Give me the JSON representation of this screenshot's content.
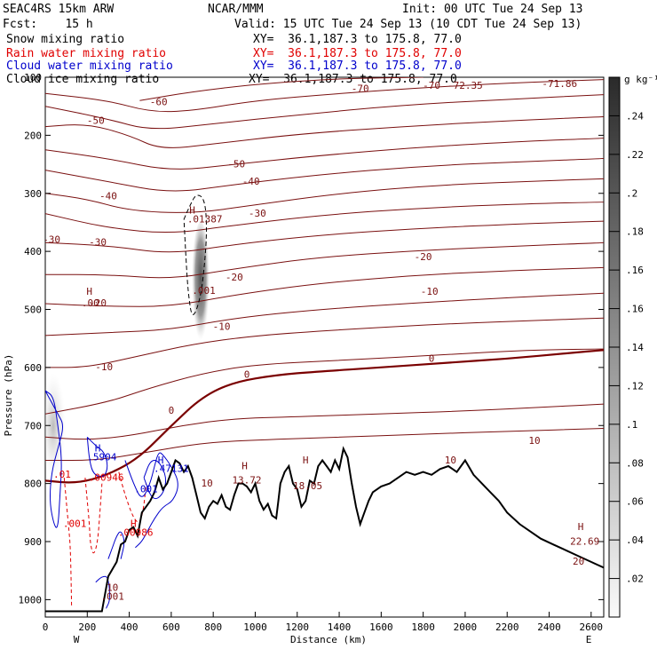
{
  "chart_data": {
    "type": "cross-section",
    "header": {
      "model": "SEAC4RS 15km ARW",
      "center": "NCAR/MMM",
      "init": "Init: 00 UTC Tue 24 Sep 13",
      "fcst": "Fcst:    15 h",
      "valid": "Valid: 15 UTC Tue 24 Sep 13 (10 CDT Tue 24 Sep 13)"
    },
    "fields": [
      {
        "name": "Snow mixing ratio",
        "color": "#000000",
        "xy": "XY=  36.1,187.3 to 175.8, 77.0"
      },
      {
        "name": "Rain water mixing ratio",
        "color": "#e00000",
        "xy": "XY=  36.1,187.3 to 175.8, 77.0"
      },
      {
        "name": "Cloud water mixing ratio",
        "color": "#0000cc",
        "xy": "XY=  36.1,187.3 to 175.8, 77.0"
      },
      {
        "name": "Cloud ice mixing ratio",
        "color": "#000000",
        "xy": "XY=  36.1,187.3 to 175.8, 77.0"
      }
    ],
    "xlabel": "Distance (km)",
    "ylabel": "Pressure (hPa)",
    "xlim": [
      0,
      2660
    ],
    "ylim": [
      100,
      1030
    ],
    "x_ticks": [
      0,
      200,
      400,
      600,
      800,
      1000,
      1200,
      1400,
      1600,
      1800,
      2000,
      2200,
      2400,
      2600
    ],
    "y_ticks": [
      100,
      200,
      300,
      400,
      500,
      600,
      700,
      800,
      900,
      1000
    ],
    "endpoints": {
      "left": "W",
      "right": "E"
    },
    "colorbar": {
      "unit": "g kg⁻¹",
      "labels": [
        ".24",
        ".22",
        ".2",
        ".18",
        ".16",
        ".16",
        ".14",
        ".12",
        ".1",
        ".08",
        ".06",
        ".04",
        ".02"
      ]
    },
    "temperature_contours": [
      {
        "label": "-70",
        "pts": [
          [
            450,
            140
          ],
          [
            700,
            125
          ],
          [
            1000,
            112
          ],
          [
            1400,
            102
          ],
          [
            1800,
            100
          ]
        ]
      },
      {
        "label": "-60",
        "pts": [
          [
            0,
            128
          ],
          [
            300,
            140
          ],
          [
            500,
            160
          ],
          [
            700,
            158
          ],
          [
            1000,
            140
          ],
          [
            1400,
            128
          ],
          [
            1800,
            118
          ],
          [
            2200,
            110
          ],
          [
            2660,
            104
          ]
        ]
      },
      {
        "label": "-60",
        "pts": [
          [
            0,
            150
          ],
          [
            300,
            172
          ],
          [
            500,
            192
          ],
          [
            800,
            180
          ],
          [
            1200,
            165
          ],
          [
            1700,
            148
          ],
          [
            2200,
            138
          ],
          [
            2660,
            130
          ]
        ]
      },
      {
        "label": "-50",
        "pts": [
          [
            0,
            185
          ],
          [
            200,
            180
          ],
          [
            400,
            200
          ],
          [
            550,
            225
          ],
          [
            800,
            215
          ],
          [
            1200,
            198
          ],
          [
            1700,
            185
          ],
          [
            2200,
            175
          ],
          [
            2660,
            168
          ]
        ]
      },
      {
        "label": "-50",
        "pts": [
          [
            0,
            225
          ],
          [
            300,
            240
          ],
          [
            600,
            262
          ],
          [
            900,
            250
          ],
          [
            1300,
            235
          ],
          [
            1800,
            220
          ],
          [
            2300,
            210
          ],
          [
            2660,
            205
          ]
        ]
      },
      {
        "label": "-40",
        "pts": [
          [
            0,
            260
          ],
          [
            300,
            280
          ],
          [
            600,
            300
          ],
          [
            900,
            285
          ],
          [
            1300,
            268
          ],
          [
            1800,
            253
          ],
          [
            2300,
            245
          ],
          [
            2660,
            240
          ]
        ]
      },
      {
        "label": "-40",
        "pts": [
          [
            0,
            300
          ],
          [
            200,
            310
          ],
          [
            400,
            330
          ],
          [
            700,
            335
          ],
          [
            1000,
            320
          ],
          [
            1400,
            300
          ],
          [
            1900,
            285
          ],
          [
            2400,
            278
          ],
          [
            2660,
            275
          ]
        ]
      },
      {
        "label": "-30",
        "pts": [
          [
            0,
            335
          ],
          [
            300,
            360
          ],
          [
            600,
            370
          ],
          [
            900,
            355
          ],
          [
            1300,
            338
          ],
          [
            1800,
            325
          ],
          [
            2300,
            318
          ],
          [
            2660,
            315
          ]
        ]
      },
      {
        "label": "-30",
        "pts": [
          [
            0,
            385
          ],
          [
            300,
            390
          ],
          [
            600,
            405
          ],
          [
            900,
            388
          ],
          [
            1300,
            372
          ],
          [
            1800,
            360
          ],
          [
            2300,
            352
          ],
          [
            2660,
            348
          ]
        ]
      },
      {
        "label": "-20",
        "pts": [
          [
            0,
            440
          ],
          [
            300,
            440
          ],
          [
            600,
            448
          ],
          [
            900,
            430
          ],
          [
            1300,
            410
          ],
          [
            1800,
            398
          ],
          [
            2300,
            390
          ],
          [
            2660,
            385
          ]
        ]
      },
      {
        "label": "-20",
        "pts": [
          [
            0,
            490
          ],
          [
            300,
            495
          ],
          [
            600,
            495
          ],
          [
            900,
            475
          ],
          [
            1300,
            455
          ],
          [
            1800,
            440
          ],
          [
            2300,
            432
          ],
          [
            2660,
            428
          ]
        ]
      },
      {
        "label": "-10",
        "pts": [
          [
            0,
            545
          ],
          [
            300,
            540
          ],
          [
            600,
            535
          ],
          [
            900,
            515
          ],
          [
            1300,
            500
          ],
          [
            1800,
            488
          ],
          [
            2300,
            478
          ],
          [
            2660,
            472
          ]
        ]
      },
      {
        "label": "-10",
        "pts": [
          [
            0,
            600
          ],
          [
            200,
            600
          ],
          [
            450,
            580
          ],
          [
            700,
            560
          ],
          [
            1000,
            545
          ],
          [
            1400,
            535
          ],
          [
            1900,
            525
          ],
          [
            2400,
            518
          ],
          [
            2660,
            515
          ]
        ]
      },
      {
        "label": "0",
        "pts": [
          [
            0,
            680
          ],
          [
            300,
            660
          ],
          [
            500,
            635
          ],
          [
            750,
            610
          ],
          [
            1000,
            595
          ],
          [
            1400,
            588
          ],
          [
            1900,
            578
          ],
          [
            2300,
            570
          ],
          [
            2660,
            568
          ]
        ]
      },
      {
        "label": "10",
        "pts": [
          [
            0,
            720
          ],
          [
            200,
            725
          ],
          [
            400,
            718
          ],
          [
            650,
            700
          ],
          [
            900,
            688
          ],
          [
            1200,
            685
          ],
          [
            1600,
            680
          ],
          [
            2000,
            675
          ],
          [
            2400,
            668
          ],
          [
            2660,
            663
          ]
        ]
      },
      {
        "label": "10",
        "pts": [
          [
            0,
            760
          ],
          [
            250,
            760
          ],
          [
            500,
            745
          ],
          [
            750,
            730
          ],
          [
            1000,
            725
          ],
          [
            1400,
            720
          ],
          [
            1800,
            715
          ],
          [
            2200,
            710
          ],
          [
            2660,
            705
          ]
        ]
      }
    ],
    "zero_isotherm": [
      [
        0,
        795
      ],
      [
        150,
        800
      ],
      [
        300,
        785
      ],
      [
        450,
        755
      ],
      [
        600,
        700
      ],
      [
        750,
        650
      ],
      [
        900,
        625
      ],
      [
        1100,
        613
      ],
      [
        1300,
        607
      ],
      [
        1600,
        600
      ],
      [
        1900,
        592
      ],
      [
        2200,
        585
      ],
      [
        2500,
        575
      ],
      [
        2660,
        570
      ]
    ],
    "terrain": [
      [
        0,
        1020
      ],
      [
        270,
        1020
      ],
      [
        300,
        960
      ],
      [
        340,
        935
      ],
      [
        360,
        905
      ],
      [
        380,
        900
      ],
      [
        400,
        880
      ],
      [
        420,
        875
      ],
      [
        440,
        890
      ],
      [
        460,
        850
      ],
      [
        480,
        840
      ],
      [
        500,
        830
      ],
      [
        520,
        815
      ],
      [
        540,
        790
      ],
      [
        560,
        810
      ],
      [
        580,
        800
      ],
      [
        600,
        780
      ],
      [
        620,
        760
      ],
      [
        640,
        765
      ],
      [
        660,
        780
      ],
      [
        680,
        770
      ],
      [
        700,
        790
      ],
      [
        720,
        820
      ],
      [
        740,
        850
      ],
      [
        760,
        860
      ],
      [
        780,
        840
      ],
      [
        800,
        830
      ],
      [
        820,
        835
      ],
      [
        840,
        820
      ],
      [
        860,
        840
      ],
      [
        880,
        845
      ],
      [
        900,
        820
      ],
      [
        920,
        800
      ],
      [
        940,
        800
      ],
      [
        960,
        805
      ],
      [
        980,
        815
      ],
      [
        1000,
        800
      ],
      [
        1020,
        830
      ],
      [
        1040,
        845
      ],
      [
        1060,
        835
      ],
      [
        1080,
        855
      ],
      [
        1100,
        860
      ],
      [
        1110,
        830
      ],
      [
        1120,
        800
      ],
      [
        1140,
        780
      ],
      [
        1160,
        770
      ],
      [
        1180,
        800
      ],
      [
        1200,
        810
      ],
      [
        1220,
        840
      ],
      [
        1240,
        830
      ],
      [
        1260,
        795
      ],
      [
        1280,
        800
      ],
      [
        1300,
        770
      ],
      [
        1320,
        760
      ],
      [
        1340,
        770
      ],
      [
        1360,
        780
      ],
      [
        1380,
        760
      ],
      [
        1400,
        775
      ],
      [
        1420,
        740
      ],
      [
        1440,
        755
      ],
      [
        1460,
        800
      ],
      [
        1480,
        840
      ],
      [
        1500,
        870
      ],
      [
        1520,
        850
      ],
      [
        1540,
        830
      ],
      [
        1560,
        815
      ],
      [
        1600,
        805
      ],
      [
        1640,
        800
      ],
      [
        1680,
        790
      ],
      [
        1720,
        780
      ],
      [
        1760,
        785
      ],
      [
        1800,
        780
      ],
      [
        1840,
        785
      ],
      [
        1880,
        775
      ],
      [
        1920,
        770
      ],
      [
        1960,
        780
      ],
      [
        2000,
        760
      ],
      [
        2040,
        785
      ],
      [
        2080,
        800
      ],
      [
        2120,
        815
      ],
      [
        2160,
        830
      ],
      [
        2200,
        850
      ],
      [
        2260,
        870
      ],
      [
        2300,
        880
      ],
      [
        2360,
        895
      ],
      [
        2420,
        905
      ],
      [
        2480,
        915
      ],
      [
        2540,
        925
      ],
      [
        2600,
        935
      ],
      [
        2660,
        945
      ]
    ],
    "labels": [
      {
        "text": "-60",
        "x": 540,
        "y": 148
      },
      {
        "text": "-50",
        "x": 240,
        "y": 180
      },
      {
        "text": "-50",
        "x": 910,
        "y": 255
      },
      {
        "text": "-40",
        "x": 300,
        "y": 310
      },
      {
        "text": "-40",
        "x": 980,
        "y": 285
      },
      {
        "text": "-30",
        "x": 30,
        "y": 385
      },
      {
        "text": "-30",
        "x": 250,
        "y": 390
      },
      {
        "text": "-30",
        "x": 1010,
        "y": 340
      },
      {
        "text": "-20",
        "x": 250,
        "y": 495
      },
      {
        "text": "-20",
        "x": 900,
        "y": 450
      },
      {
        "text": "-20",
        "x": 1800,
        "y": 415
      },
      {
        "text": "-10",
        "x": 280,
        "y": 605
      },
      {
        "text": "-10",
        "x": 840,
        "y": 535
      },
      {
        "text": "-10",
        "x": 1830,
        "y": 475
      },
      {
        "text": "0",
        "x": 600,
        "y": 680
      },
      {
        "text": "0",
        "x": 960,
        "y": 618
      },
      {
        "text": "0",
        "x": 1840,
        "y": 590
      },
      {
        "text": "-70",
        "x": 1500,
        "y": 125
      },
      {
        "text": "-70",
        "x": 1840,
        "y": 120
      },
      {
        "text": "-72.35",
        "x": 2000,
        "y": 120
      },
      {
        "text": "-71.86",
        "x": 2450,
        "y": 117
      },
      {
        "text": "10",
        "x": 770,
        "y": 805
      },
      {
        "text": "10",
        "x": 1930,
        "y": 765
      },
      {
        "text": "10",
        "x": 2330,
        "y": 732
      },
      {
        "text": "20",
        "x": 2540,
        "y": 940
      },
      {
        "text": "10",
        "x": 320,
        "y": 985
      },
      {
        "text": "H",
        "x": 700,
        "y": 335
      },
      {
        "text": ".01387",
        "x": 760,
        "y": 350
      },
      {
        "text": ".001",
        "x": 755,
        "y": 473
      },
      {
        "text": "H",
        "x": 210,
        "y": 475
      },
      {
        "text": ".00",
        "x": 215,
        "y": 495
      },
      {
        "text": "H",
        "x": 950,
        "y": 775
      },
      {
        "text": "13.72",
        "x": 960,
        "y": 800
      },
      {
        "text": "H",
        "x": 1240,
        "y": 765
      },
      {
        "text": "18.05",
        "x": 1250,
        "y": 810
      },
      {
        "text": "H",
        "x": 2550,
        "y": 880
      },
      {
        "text": "22.69",
        "x": 2570,
        "y": 905
      },
      {
        "text": ".001",
        "x": 320,
        "y": 1000
      }
    ],
    "rain_labels": [
      {
        "text": ".01",
        "x": 80,
        "y": 790
      },
      {
        "text": ".00946",
        "x": 290,
        "y": 795
      },
      {
        "text": ".001",
        "x": 140,
        "y": 875
      },
      {
        "text": "H",
        "x": 420,
        "y": 875
      },
      {
        "text": ".00986",
        "x": 430,
        "y": 890
      }
    ],
    "cloud_labels": [
      {
        "text": "H",
        "x": 250,
        "y": 745
      },
      {
        "text": ".5904",
        "x": 270,
        "y": 760
      },
      {
        "text": "H",
        "x": 550,
        "y": 765
      },
      {
        "text": ".47131",
        "x": 600,
        "y": 780
      },
      {
        "text": ".001",
        "x": 480,
        "y": 815
      }
    ]
  }
}
